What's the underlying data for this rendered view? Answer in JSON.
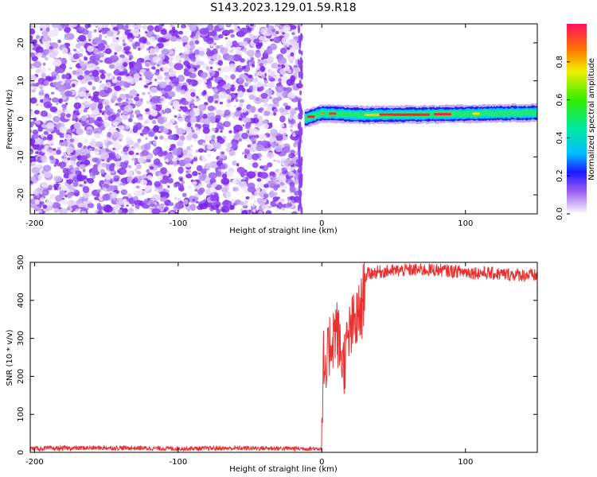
{
  "title": "S143.2023.129.01.59.R18",
  "chart_data": [
    {
      "type": "heatmap",
      "xlabel": "Height of straight line (km)",
      "ylabel": "Frequency (Hz)",
      "xlim": [
        -203,
        150
      ],
      "ylim": [
        -25,
        25
      ],
      "xticks": [
        -200,
        -100,
        0,
        100
      ],
      "yticks": [
        -20,
        -10,
        0,
        10,
        20
      ],
      "colorbar": {
        "label": "Normalized spectral amplitude",
        "range": [
          0,
          1
        ],
        "ticks": [
          0.0,
          0.2,
          0.4,
          0.6,
          0.8
        ]
      },
      "regions": [
        {
          "x_range": [
            -203,
            -15
          ],
          "description": "random low-amplitude (0–0.2) speckle across all frequencies"
        },
        {
          "x_range": [
            -15,
            150
          ],
          "description": "narrow band near 0–2 Hz with amplitude up to 1.0"
        }
      ],
      "band_center_hz": [
        {
          "x": -12,
          "f": 0.0
        },
        {
          "x": 0,
          "f": 1.5
        },
        {
          "x": 30,
          "f": 1.0
        },
        {
          "x": 80,
          "f": 1.2
        },
        {
          "x": 150,
          "f": 1.6
        }
      ]
    },
    {
      "type": "line",
      "xlabel": "Height of straight line (km)",
      "ylabel": "SNR (10 * v/v)",
      "xlim": [
        -203,
        150
      ],
      "ylim": [
        0,
        500
      ],
      "xticks": [
        -200,
        -100,
        0,
        100
      ],
      "yticks": [
        0,
        100,
        200,
        300,
        400,
        500
      ],
      "color": "#e83030",
      "series": [
        {
          "x": [
            -203,
            -150,
            -100,
            -50,
            -10,
            0,
            1,
            2,
            5,
            10,
            15,
            20,
            25,
            28,
            30,
            32,
            40,
            60,
            80,
            100,
            120,
            150
          ],
          "y": [
            10,
            12,
            10,
            11,
            10,
            10,
            270,
            150,
            280,
            330,
            230,
            320,
            350,
            380,
            460,
            470,
            475,
            480,
            480,
            475,
            470,
            465
          ]
        }
      ]
    }
  ]
}
